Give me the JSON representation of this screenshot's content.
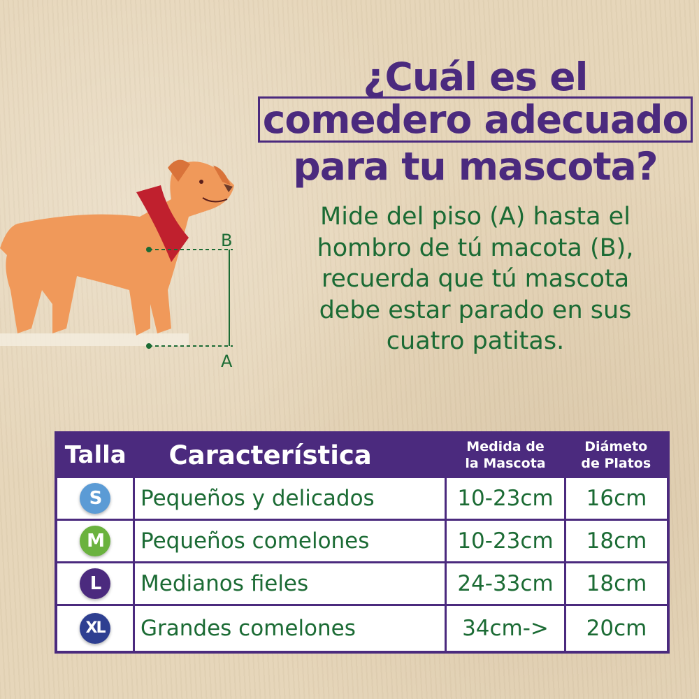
{
  "title": {
    "line1": "¿Cuál es el",
    "line2": "comedero adecuado",
    "line3": "para tu mascota?"
  },
  "description": [
    "Mide del piso (A) hasta el",
    "hombro de tú macota (B),",
    "recuerda que tú mascota",
    "debe estar parado en sus",
    "cuatro patitas."
  ],
  "diagram": {
    "top_label": "B",
    "bottom_label": "A"
  },
  "table": {
    "headers": [
      "Talla",
      "Característica",
      "Medida de la Mascota",
      "Diámeto de Platos"
    ],
    "header_lines": {
      "medida": [
        "Medida de",
        "la Mascota"
      ],
      "diametro": [
        "Diámeto",
        "de Platos"
      ]
    },
    "rows": [
      {
        "size": "S",
        "color": "#5b9bd5",
        "feature": "Pequeños y delicados",
        "measure": "10-23cm",
        "diameter": "16cm"
      },
      {
        "size": "M",
        "color": "#6ab23e",
        "feature": "Pequeños comelones",
        "measure": "10-23cm",
        "diameter": "18cm"
      },
      {
        "size": "L",
        "color": "#4b2a7e",
        "feature": "Medianos fieles",
        "measure": "24-33cm",
        "diameter": "18cm"
      },
      {
        "size": "XL",
        "color": "#2e3f91",
        "feature": "Grandes comelones",
        "measure": "34cm->",
        "diameter": "20cm"
      }
    ]
  }
}
